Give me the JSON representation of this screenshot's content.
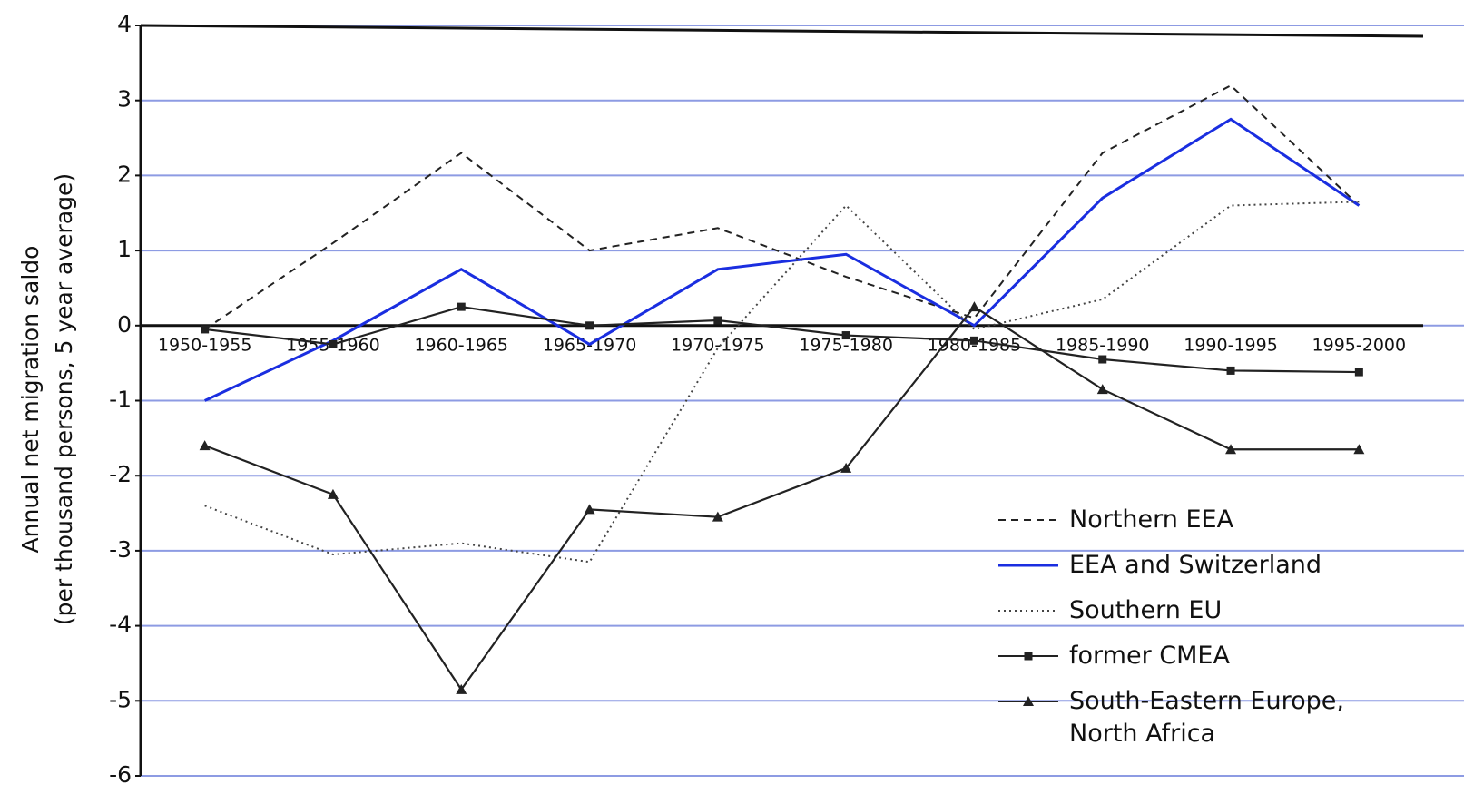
{
  "chart_data": {
    "type": "line",
    "y_label": [
      "Annual net migration saldo",
      "(per thousand persons, 5 year average)"
    ],
    "categories": [
      "1950-1955",
      "1955-1960",
      "1960-1965",
      "1965-1970",
      "1970-1975",
      "1975-1980",
      "1980-1985",
      "1985-1990",
      "1990-1995",
      "1995-2000"
    ],
    "series": [
      {
        "name": "Northern EEA",
        "color": "#222222",
        "dash": "8,6",
        "values": [
          -0.05,
          1.1,
          2.3,
          1.0,
          1.3,
          0.65,
          0.1,
          2.3,
          3.2,
          1.6
        ]
      },
      {
        "name": "EEA and Switzerland",
        "color": "#1a2ee0",
        "values": [
          -1.0,
          -0.2,
          0.75,
          -0.25,
          0.75,
          0.95,
          0.0,
          1.7,
          2.75,
          1.6
        ]
      },
      {
        "name": "Southern EU",
        "color": "#444444",
        "dash": "2,4",
        "values": [
          -2.4,
          -3.05,
          -2.9,
          -3.15,
          -0.3,
          1.6,
          -0.05,
          0.35,
          1.6,
          1.65
        ]
      },
      {
        "name": "former CMEA",
        "color": "#222222",
        "marker": "square",
        "values": [
          -0.05,
          -0.25,
          0.25,
          0.0,
          0.07,
          -0.13,
          -0.2,
          -0.45,
          -0.6,
          -0.62
        ]
      },
      {
        "name": "South-Eastern Europe, North Africa",
        "color": "#222222",
        "marker": "triangle",
        "values": [
          -1.6,
          -2.25,
          -4.85,
          -2.45,
          -2.55,
          -1.9,
          0.25,
          -0.85,
          -1.65,
          -1.65
        ]
      }
    ],
    "ylim": [
      -6,
      4
    ],
    "yticks": [
      -6,
      -5,
      -4,
      -3,
      -2,
      -1,
      0,
      1,
      2,
      3,
      4
    ],
    "grid": true,
    "grid_color": "#8d9be3"
  }
}
